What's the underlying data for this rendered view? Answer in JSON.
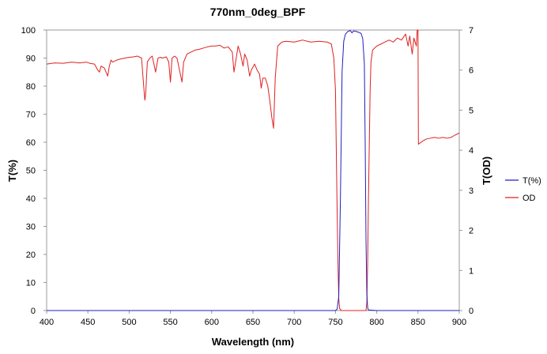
{
  "chart_data": {
    "type": "line",
    "title": "770nm_0deg_BPF",
    "xlabel": "Wavelength (nm)",
    "ylabel_left": "T(%)",
    "ylabel_right": "T(OD)",
    "xlim": [
      400,
      900
    ],
    "ylim_left": [
      0,
      100
    ],
    "ylim_right": [
      0,
      7
    ],
    "x_ticks": [
      400,
      450,
      500,
      550,
      600,
      650,
      700,
      750,
      800,
      850,
      900
    ],
    "y_ticks_left": [
      0,
      10,
      20,
      30,
      40,
      50,
      60,
      70,
      80,
      90,
      100
    ],
    "y_ticks_right": [
      0,
      1,
      2,
      3,
      4,
      5,
      6,
      7
    ],
    "grid": false,
    "legend_position": "right",
    "series": [
      {
        "name": "T(%)",
        "axis": "left",
        "color": "#1f1fbf",
        "points": [
          [
            400,
            0
          ],
          [
            700,
            0
          ],
          [
            750,
            0
          ],
          [
            752,
            0.5
          ],
          [
            754,
            5
          ],
          [
            756,
            40
          ],
          [
            758,
            85
          ],
          [
            760,
            96
          ],
          [
            762,
            98.5
          ],
          [
            765,
            99.5
          ],
          [
            768,
            99.8
          ],
          [
            770,
            99
          ],
          [
            772,
            99.7
          ],
          [
            775,
            99.5
          ],
          [
            778,
            99.2
          ],
          [
            781,
            98.8
          ],
          [
            783,
            97
          ],
          [
            785,
            88
          ],
          [
            786,
            60
          ],
          [
            787,
            25
          ],
          [
            788,
            6
          ],
          [
            789,
            1
          ],
          [
            790,
            0.2
          ],
          [
            800,
            0
          ],
          [
            900,
            0
          ]
        ]
      },
      {
        "name": "OD",
        "axis": "right",
        "color": "#e02020",
        "points": [
          [
            400,
            6.15
          ],
          [
            410,
            6.18
          ],
          [
            420,
            6.17
          ],
          [
            430,
            6.2
          ],
          [
            440,
            6.18
          ],
          [
            448,
            6.2
          ],
          [
            452,
            6.17
          ],
          [
            458,
            6.15
          ],
          [
            462,
            6.0
          ],
          [
            464,
            5.95
          ],
          [
            466,
            6.1
          ],
          [
            470,
            6.05
          ],
          [
            474,
            5.85
          ],
          [
            476,
            6.1
          ],
          [
            478,
            6.25
          ],
          [
            480,
            6.2
          ],
          [
            485,
            6.25
          ],
          [
            490,
            6.28
          ],
          [
            495,
            6.3
          ],
          [
            500,
            6.32
          ],
          [
            505,
            6.33
          ],
          [
            510,
            6.35
          ],
          [
            515,
            6.3
          ],
          [
            518,
            5.5
          ],
          [
            519,
            5.25
          ],
          [
            520,
            5.4
          ],
          [
            522,
            6.2
          ],
          [
            525,
            6.3
          ],
          [
            528,
            6.35
          ],
          [
            532,
            5.95
          ],
          [
            535,
            6.3
          ],
          [
            538,
            6.32
          ],
          [
            540,
            6.3
          ],
          [
            545,
            6.33
          ],
          [
            548,
            6.2
          ],
          [
            550,
            5.7
          ],
          [
            552,
            6.3
          ],
          [
            555,
            6.35
          ],
          [
            558,
            6.3
          ],
          [
            562,
            5.9
          ],
          [
            564,
            5.7
          ],
          [
            566,
            6.2
          ],
          [
            570,
            6.4
          ],
          [
            575,
            6.45
          ],
          [
            580,
            6.5
          ],
          [
            585,
            6.52
          ],
          [
            590,
            6.55
          ],
          [
            595,
            6.58
          ],
          [
            600,
            6.6
          ],
          [
            605,
            6.6
          ],
          [
            610,
            6.62
          ],
          [
            615,
            6.55
          ],
          [
            620,
            6.58
          ],
          [
            625,
            6.45
          ],
          [
            627,
            5.95
          ],
          [
            629,
            6.2
          ],
          [
            632,
            6.6
          ],
          [
            635,
            6.4
          ],
          [
            638,
            6.1
          ],
          [
            640,
            6.4
          ],
          [
            643,
            6.25
          ],
          [
            646,
            5.85
          ],
          [
            648,
            6.0
          ],
          [
            652,
            6.15
          ],
          [
            655,
            6.0
          ],
          [
            658,
            5.9
          ],
          [
            660,
            5.55
          ],
          [
            662,
            5.8
          ],
          [
            665,
            5.8
          ],
          [
            668,
            5.6
          ],
          [
            670,
            5.3
          ],
          [
            673,
            4.8
          ],
          [
            675,
            4.55
          ],
          [
            677,
            5.8
          ],
          [
            680,
            6.6
          ],
          [
            685,
            6.7
          ],
          [
            690,
            6.72
          ],
          [
            700,
            6.7
          ],
          [
            710,
            6.75
          ],
          [
            720,
            6.7
          ],
          [
            730,
            6.72
          ],
          [
            740,
            6.7
          ],
          [
            745,
            6.65
          ],
          [
            748,
            6.3
          ],
          [
            750,
            5.5
          ],
          [
            751,
            4.0
          ],
          [
            752,
            2.5
          ],
          [
            753,
            1.2
          ],
          [
            754,
            0.3
          ],
          [
            755,
            0.05
          ],
          [
            757,
            0
          ],
          [
            787,
            0
          ],
          [
            788,
            0.2
          ],
          [
            789,
            1.2
          ],
          [
            790,
            2.8
          ],
          [
            791,
            4.2
          ],
          [
            792,
            5.5
          ],
          [
            793,
            6.2
          ],
          [
            795,
            6.5
          ],
          [
            800,
            6.6
          ],
          [
            805,
            6.65
          ],
          [
            810,
            6.7
          ],
          [
            815,
            6.75
          ],
          [
            820,
            6.7
          ],
          [
            825,
            6.8
          ],
          [
            830,
            6.75
          ],
          [
            835,
            6.9
          ],
          [
            838,
            6.6
          ],
          [
            840,
            6.85
          ],
          [
            843,
            6.4
          ],
          [
            845,
            6.8
          ],
          [
            848,
            6.6
          ],
          [
            849,
            7.0
          ],
          [
            850,
            7.0
          ],
          [
            850.5,
            4.15
          ],
          [
            855,
            4.22
          ],
          [
            860,
            4.28
          ],
          [
            865,
            4.3
          ],
          [
            870,
            4.32
          ],
          [
            875,
            4.3
          ],
          [
            880,
            4.32
          ],
          [
            885,
            4.3
          ],
          [
            890,
            4.32
          ],
          [
            895,
            4.38
          ],
          [
            900,
            4.43
          ]
        ]
      }
    ]
  }
}
